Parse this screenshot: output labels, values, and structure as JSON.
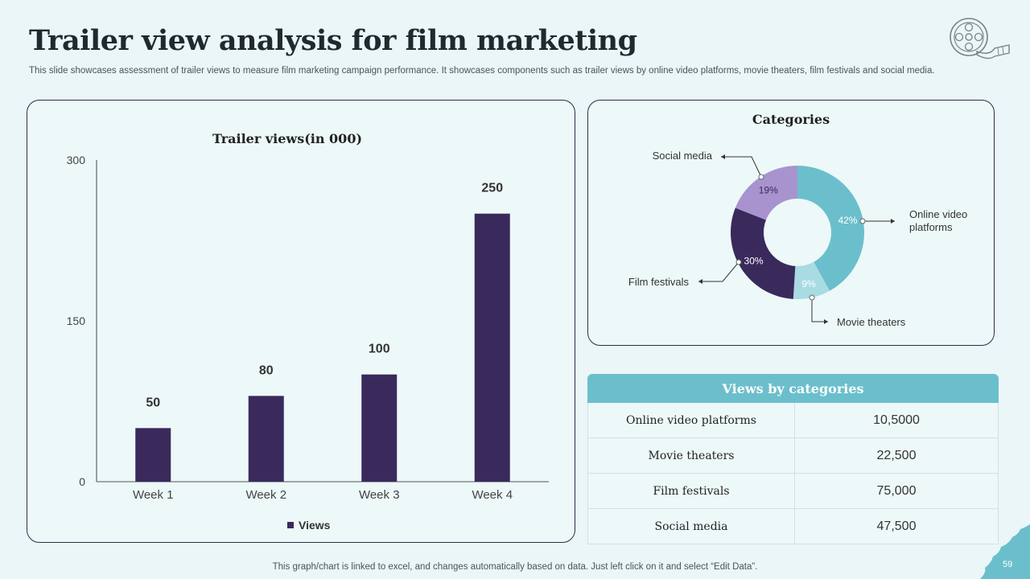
{
  "header": {
    "title": "Trailer view analysis for film marketing",
    "subtitle": "This slide showcases assessment of trailer views to measure film marketing campaign performance. It showcases components such as trailer views by online video platforms, movie theaters, film festivals and social media."
  },
  "logo_icon": "film-reel-icon",
  "colors": {
    "bar": "#3a2a5c",
    "online": "#6bbfcc",
    "theaters": "#a9dbe3",
    "festivals": "#3a2a5c",
    "social": "#a893cf",
    "table_header": "#6bbfcc",
    "background": "#eaf6f7"
  },
  "chart_data": [
    {
      "type": "bar",
      "title": "Trailer views(in 000)",
      "categories": [
        "Week 1",
        "Week 2",
        "Week 3",
        "Week 4"
      ],
      "series": [
        {
          "name": "Views",
          "values": [
            50,
            80,
            100,
            250
          ]
        }
      ],
      "yticks": [
        "0",
        "150",
        "300"
      ],
      "ylim": [
        0,
        300
      ],
      "legend": "bottom",
      "grid": false
    },
    {
      "type": "pie",
      "title": "Categories",
      "donut": true,
      "slices": [
        {
          "label": "Online video platforms",
          "value": 42,
          "display": "42%"
        },
        {
          "label": "Movie theaters",
          "value": 9,
          "display": "9%"
        },
        {
          "label": "Film festivals",
          "value": 30,
          "display": "30%"
        },
        {
          "label": "Social media",
          "value": 19,
          "display": "19%"
        }
      ]
    }
  ],
  "table": {
    "title": "Views by categories",
    "rows": [
      {
        "category": "Online video platforms",
        "value": "10,5000"
      },
      {
        "category": "Movie theaters",
        "value": "22,500"
      },
      {
        "category": "Film festivals",
        "value": "75,000"
      },
      {
        "category": "Social media",
        "value": "47,500"
      }
    ]
  },
  "footer": {
    "note": "This graph/chart is linked to excel, and changes automatically based on data. Just left click on it and select “Edit Data”.",
    "page_number": "59"
  }
}
